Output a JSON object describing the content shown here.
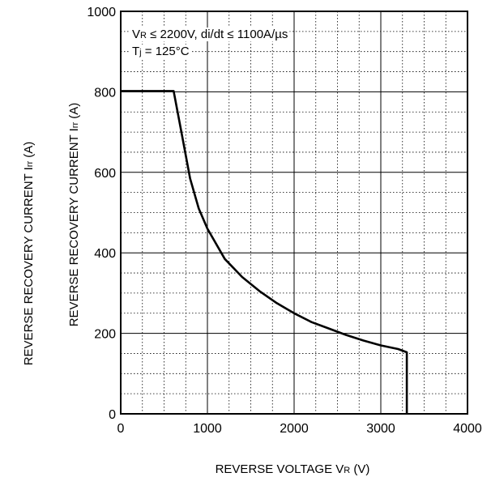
{
  "chart_data": {
    "type": "line",
    "title": "",
    "xlabel": {
      "main": "REVERSE VOLTAGE V",
      "sub": "R",
      "unit": " (V)"
    },
    "ylabel": {
      "main": "REVERSE RECOVERY CURRENT I",
      "sub": "rr",
      "unit": " (A)"
    },
    "xlim": [
      0,
      4000
    ],
    "ylim": [
      0,
      1000
    ],
    "x_ticks": [
      0,
      1000,
      2000,
      3000,
      4000
    ],
    "x_tick_labels": [
      "0",
      "1000",
      "2000",
      "3000",
      "4000"
    ],
    "y_ticks": [
      0,
      200,
      400,
      600,
      800,
      1000
    ],
    "y_tick_labels": [
      "0",
      "200",
      "400",
      "600",
      "800",
      "1000"
    ],
    "grid": {
      "major": true,
      "minor_dotted": true,
      "x_minor_step": 250,
      "y_minor_step": 50
    },
    "annotations": [
      {
        "parts": [
          {
            "text": "V",
            "sub": false
          },
          {
            "text": "R",
            "sub": true
          },
          {
            "text": " ≤ 2200V, di/dt ≤ 1100A/µs",
            "sub": false
          }
        ]
      },
      {
        "parts": [
          {
            "text": "T",
            "sub": false
          },
          {
            "text": "j",
            "sub": true
          },
          {
            "text": " = 125°C",
            "sub": false
          }
        ]
      }
    ],
    "series": [
      {
        "points": [
          [
            0,
            802
          ],
          [
            610,
            802
          ],
          [
            700,
            700
          ],
          [
            800,
            585
          ],
          [
            900,
            510
          ],
          [
            1000,
            460
          ],
          [
            1200,
            385
          ],
          [
            1400,
            340
          ],
          [
            1600,
            305
          ],
          [
            1800,
            275
          ],
          [
            2000,
            250
          ],
          [
            2200,
            228
          ],
          [
            2400,
            212
          ],
          [
            2600,
            196
          ],
          [
            2800,
            182
          ],
          [
            3000,
            170
          ],
          [
            3200,
            161
          ],
          [
            3300,
            153
          ],
          [
            3300,
            0
          ]
        ]
      }
    ]
  }
}
